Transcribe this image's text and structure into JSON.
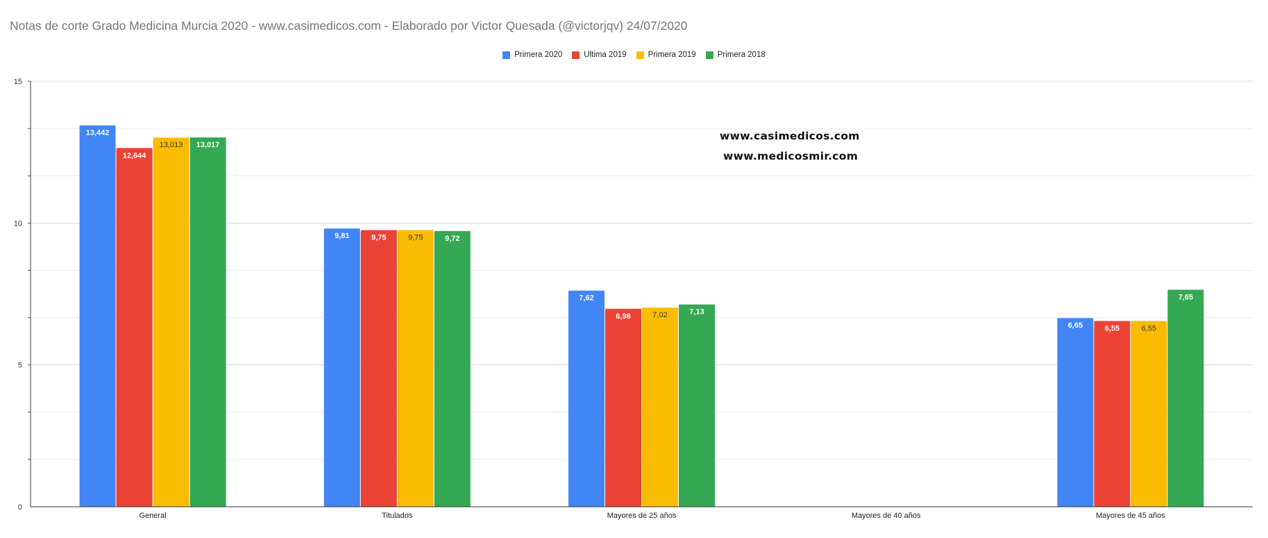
{
  "chart_data": {
    "type": "bar",
    "title": "Notas de corte Grado Medicina Murcia 2020 - www.casimedicos.com - Elaborado por Victor Quesada (@victorjqv)  24/07/2020",
    "categories": [
      "General",
      "Titulados",
      "Mayores de 25 años",
      "Mayores de 40 años",
      "Mayores de 45 años"
    ],
    "series": [
      {
        "name": "Primera 2020",
        "color": "#4285F4",
        "label_color": "#ffffff",
        "values": [
          13.442,
          9.81,
          7.62,
          null,
          6.65
        ],
        "labels": [
          "13,442",
          "9,81",
          "7,62",
          null,
          "6,65"
        ]
      },
      {
        "name": "Ultima 2019",
        "color": "#EA4335",
        "label_color": "#ffffff",
        "values": [
          12.644,
          9.75,
          6.98,
          null,
          6.55
        ],
        "labels": [
          "12,644",
          "9,75",
          "6,98",
          null,
          "6,55"
        ]
      },
      {
        "name": "Primera 2019",
        "color": "#FBBC04",
        "label_color": "#333333",
        "values": [
          13.013,
          9.75,
          7.02,
          null,
          6.55
        ],
        "labels": [
          "13,013",
          "9,75",
          "7,02",
          null,
          "6,55"
        ]
      },
      {
        "name": "Primera 2018",
        "color": "#34A853",
        "label_color": "#ffffff",
        "values": [
          13.017,
          9.72,
          7.13,
          null,
          7.65
        ],
        "labels": [
          "13,017",
          "9,72",
          "7,13",
          null,
          "7,65"
        ]
      }
    ],
    "ylim": [
      0,
      15
    ],
    "yticks": [
      0,
      5,
      10,
      15
    ],
    "xlabel": "",
    "ylabel": "",
    "grid": true,
    "legend_position": "top-center",
    "annotations": [
      "www.casimedicos.com",
      "www.medicosmir.com"
    ]
  }
}
